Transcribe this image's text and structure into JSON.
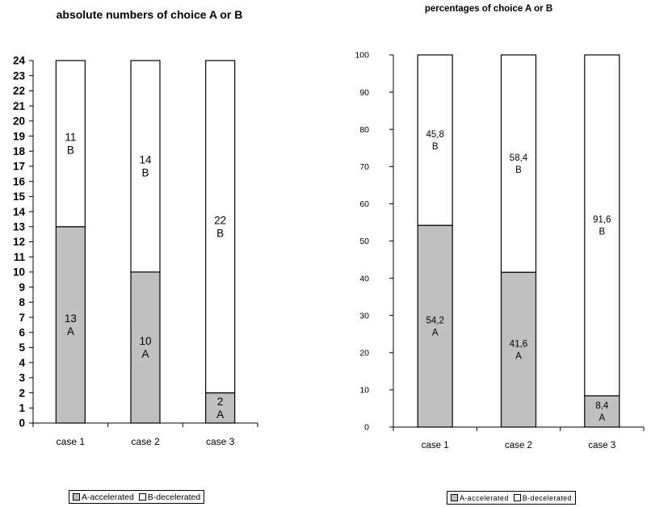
{
  "colors": {
    "a": "#c0c0c0",
    "b": "#ffffff",
    "stroke": "#000000"
  },
  "chart_data": [
    {
      "type": "bar",
      "stacked": true,
      "title": "absolute numbers of choice A or B",
      "categories": [
        "case 1",
        "case 2",
        "case 3"
      ],
      "series": [
        {
          "name": "A-accelerated",
          "letter": "A",
          "values": [
            13,
            10,
            2
          ],
          "labels": [
            "13",
            "10",
            "2"
          ]
        },
        {
          "name": "B-decelerated",
          "letter": "B",
          "values": [
            11,
            14,
            22
          ],
          "labels": [
            "11",
            "14",
            "22"
          ]
        }
      ],
      "ylim": [
        0,
        24
      ],
      "yticks": [
        0,
        1,
        2,
        3,
        4,
        5,
        6,
        7,
        8,
        9,
        10,
        11,
        12,
        13,
        14,
        15,
        16,
        17,
        18,
        19,
        20,
        21,
        22,
        23,
        24
      ],
      "grid": false,
      "legend_position": "bottom",
      "legend_entries": [
        "A-accelerated",
        "B-decelerated"
      ]
    },
    {
      "type": "bar",
      "stacked": true,
      "title": "percentages of choice A or B",
      "categories": [
        "case 1",
        "case 2",
        "case 3"
      ],
      "series": [
        {
          "name": "A-accelerated",
          "letter": "A",
          "values": [
            54.2,
            41.6,
            8.4
          ],
          "labels": [
            "54,2",
            "41,6",
            "8,4"
          ]
        },
        {
          "name": "B-decelerated",
          "letter": "B",
          "values": [
            45.8,
            58.4,
            91.6
          ],
          "labels": [
            "45,8",
            "58,4",
            "91,6"
          ]
        }
      ],
      "ylim": [
        0,
        100
      ],
      "yticks": [
        0,
        10,
        20,
        30,
        40,
        50,
        60,
        70,
        80,
        90,
        100
      ],
      "grid": false,
      "legend_position": "bottom",
      "legend_entries": [
        "A-accelerated",
        "B-decelerated"
      ]
    }
  ]
}
